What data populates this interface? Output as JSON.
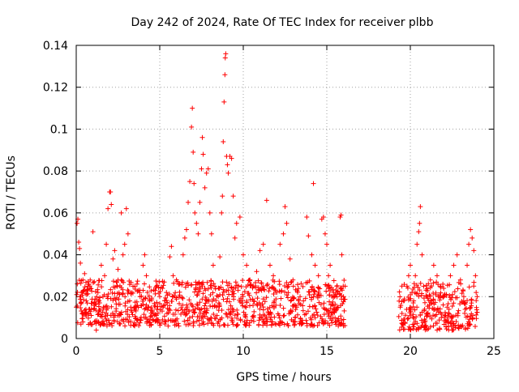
{
  "chart_data": {
    "type": "scatter",
    "title": "Day 242 of 2024, Rate Of TEC Index for receiver plbb",
    "xlabel": "GPS time / hours",
    "ylabel": "ROTI / TECUs",
    "xlim": [
      0,
      25
    ],
    "ylim": [
      0,
      0.14
    ],
    "xticks": [
      0,
      5,
      10,
      15,
      20,
      25
    ],
    "xtick_labels": [
      "0",
      "5",
      "10",
      "15",
      "20",
      "25"
    ],
    "yticks": [
      0,
      0.02,
      0.04,
      0.06,
      0.08,
      0.1,
      0.12,
      0.14
    ],
    "ytick_labels": [
      "0",
      "0.02",
      "0.04",
      "0.06",
      "0.08",
      "0.1",
      "0.12",
      "0.14"
    ],
    "grid": true,
    "marker": "+",
    "color": "#ff0000",
    "background": "#ffffff",
    "series": [
      {
        "name": "ROTI",
        "points": [
          [
            0.0,
            0.015
          ],
          [
            0.05,
            0.055
          ],
          [
            0.1,
            0.057
          ],
          [
            0.15,
            0.046
          ],
          [
            0.2,
            0.043
          ],
          [
            0.25,
            0.036
          ],
          [
            0.3,
            0.022
          ],
          [
            0.35,
            0.012
          ],
          [
            0.4,
            0.028
          ],
          [
            0.5,
            0.031
          ],
          [
            0.6,
            0.018
          ],
          [
            0.7,
            0.025
          ],
          [
            0.8,
            0.014
          ],
          [
            0.9,
            0.011
          ],
          [
            1.0,
            0.051
          ],
          [
            1.1,
            0.008
          ],
          [
            1.2,
            0.004
          ],
          [
            1.3,
            0.022
          ],
          [
            1.4,
            0.017
          ],
          [
            1.5,
            0.035
          ],
          [
            1.6,
            0.02
          ],
          [
            1.7,
            0.03
          ],
          [
            1.8,
            0.045
          ],
          [
            1.9,
            0.062
          ],
          [
            2.0,
            0.07
          ],
          [
            2.05,
            0.07
          ],
          [
            2.1,
            0.064
          ],
          [
            2.2,
            0.038
          ],
          [
            2.3,
            0.042
          ],
          [
            2.4,
            0.027
          ],
          [
            2.5,
            0.033
          ],
          [
            2.6,
            0.021
          ],
          [
            2.7,
            0.06
          ],
          [
            2.8,
            0.04
          ],
          [
            2.9,
            0.045
          ],
          [
            3.0,
            0.062
          ],
          [
            3.1,
            0.05
          ],
          [
            3.2,
            0.018
          ],
          [
            3.4,
            0.025
          ],
          [
            3.6,
            0.015
          ],
          [
            3.8,
            0.022
          ],
          [
            4.0,
            0.035
          ],
          [
            4.1,
            0.04
          ],
          [
            4.2,
            0.03
          ],
          [
            4.4,
            0.018
          ],
          [
            4.6,
            0.012
          ],
          [
            4.8,
            0.025
          ],
          [
            5.0,
            0.02
          ],
          [
            5.2,
            0.015
          ],
          [
            5.4,
            0.022
          ],
          [
            5.6,
            0.039
          ],
          [
            5.7,
            0.044
          ],
          [
            5.8,
            0.03
          ],
          [
            6.0,
            0.028
          ],
          [
            6.2,
            0.026
          ],
          [
            6.4,
            0.04
          ],
          [
            6.5,
            0.048
          ],
          [
            6.6,
            0.052
          ],
          [
            6.7,
            0.065
          ],
          [
            6.8,
            0.075
          ],
          [
            6.9,
            0.101
          ],
          [
            6.95,
            0.11
          ],
          [
            7.0,
            0.089
          ],
          [
            7.05,
            0.074
          ],
          [
            7.1,
            0.06
          ],
          [
            7.2,
            0.055
          ],
          [
            7.3,
            0.05
          ],
          [
            7.4,
            0.065
          ],
          [
            7.5,
            0.081
          ],
          [
            7.55,
            0.096
          ],
          [
            7.6,
            0.088
          ],
          [
            7.7,
            0.072
          ],
          [
            7.8,
            0.079
          ],
          [
            7.9,
            0.081
          ],
          [
            8.0,
            0.06
          ],
          [
            8.1,
            0.05
          ],
          [
            8.2,
            0.035
          ],
          [
            8.3,
            0.025
          ],
          [
            8.4,
            0.015
          ],
          [
            8.5,
            0.02
          ],
          [
            8.6,
            0.039
          ],
          [
            8.7,
            0.06
          ],
          [
            8.75,
            0.068
          ],
          [
            8.8,
            0.094
          ],
          [
            8.85,
            0.113
          ],
          [
            8.9,
            0.126
          ],
          [
            8.92,
            0.134
          ],
          [
            8.95,
            0.136
          ],
          [
            9.0,
            0.087
          ],
          [
            9.05,
            0.083
          ],
          [
            9.1,
            0.079
          ],
          [
            9.2,
            0.087
          ],
          [
            9.3,
            0.086
          ],
          [
            9.4,
            0.068
          ],
          [
            9.5,
            0.048
          ],
          [
            9.6,
            0.055
          ],
          [
            9.8,
            0.058
          ],
          [
            10.0,
            0.04
          ],
          [
            10.2,
            0.035
          ],
          [
            10.4,
            0.028
          ],
          [
            10.6,
            0.025
          ],
          [
            10.8,
            0.032
          ],
          [
            11.0,
            0.042
          ],
          [
            11.2,
            0.045
          ],
          [
            11.4,
            0.066
          ],
          [
            11.6,
            0.035
          ],
          [
            11.8,
            0.03
          ],
          [
            12.0,
            0.022
          ],
          [
            12.2,
            0.045
          ],
          [
            12.4,
            0.05
          ],
          [
            12.5,
            0.063
          ],
          [
            12.6,
            0.055
          ],
          [
            12.8,
            0.038
          ],
          [
            13.0,
            0.025
          ],
          [
            13.2,
            0.015
          ],
          [
            13.4,
            0.02
          ],
          [
            13.6,
            0.018
          ],
          [
            13.8,
            0.058
          ],
          [
            13.9,
            0.049
          ],
          [
            14.1,
            0.04
          ],
          [
            14.2,
            0.074
          ],
          [
            14.3,
            0.035
          ],
          [
            14.5,
            0.03
          ],
          [
            14.7,
            0.057
          ],
          [
            14.8,
            0.058
          ],
          [
            14.9,
            0.05
          ],
          [
            15.0,
            0.045
          ],
          [
            15.1,
            0.03
          ],
          [
            15.2,
            0.035
          ],
          [
            15.4,
            0.022
          ],
          [
            15.6,
            0.025
          ],
          [
            15.8,
            0.058
          ],
          [
            15.85,
            0.059
          ],
          [
            15.9,
            0.04
          ],
          [
            16.0,
            0.02
          ],
          [
            16.1,
            0.025
          ],
          [
            19.4,
            0.015
          ],
          [
            19.5,
            0.012
          ],
          [
            19.6,
            0.018
          ],
          [
            19.8,
            0.025
          ],
          [
            19.9,
            0.03
          ],
          [
            20.0,
            0.035
          ],
          [
            20.1,
            0.022
          ],
          [
            20.2,
            0.018
          ],
          [
            20.3,
            0.03
          ],
          [
            20.4,
            0.045
          ],
          [
            20.5,
            0.051
          ],
          [
            20.55,
            0.055
          ],
          [
            20.6,
            0.063
          ],
          [
            20.7,
            0.04
          ],
          [
            20.8,
            0.025
          ],
          [
            21.0,
            0.02
          ],
          [
            21.2,
            0.028
          ],
          [
            21.4,
            0.035
          ],
          [
            21.6,
            0.03
          ],
          [
            21.8,
            0.025
          ],
          [
            22.0,
            0.02
          ],
          [
            22.2,
            0.015
          ],
          [
            22.4,
            0.03
          ],
          [
            22.6,
            0.035
          ],
          [
            22.8,
            0.04
          ],
          [
            23.0,
            0.028
          ],
          [
            23.2,
            0.02
          ],
          [
            23.4,
            0.035
          ],
          [
            23.5,
            0.045
          ],
          [
            23.6,
            0.052
          ],
          [
            23.7,
            0.048
          ],
          [
            23.8,
            0.042
          ],
          [
            23.9,
            0.03
          ],
          [
            24.0,
            0.02
          ]
        ],
        "bands": [
          {
            "x": [
              0.0,
              16.1
            ],
            "y": [
              0.006,
              0.028
            ]
          },
          {
            "x": [
              19.3,
              24.0
            ],
            "y": [
              0.004,
              0.027
            ]
          }
        ]
      }
    ]
  }
}
